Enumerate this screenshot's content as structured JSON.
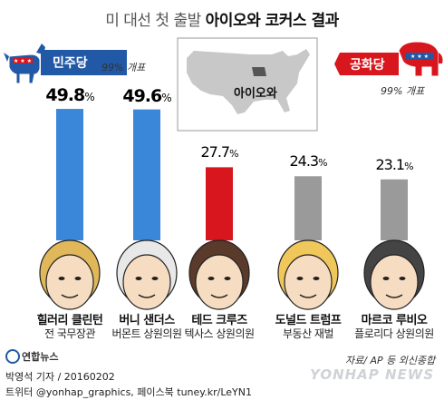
{
  "header": {
    "title_pre": "미 대선 첫 출발",
    "title_emph": "아이오와 코커스 결과"
  },
  "democrat": {
    "party": "민주당",
    "reporting": "99% 개표"
  },
  "republican": {
    "party": "공화당",
    "reporting": "99% 개표"
  },
  "map": {
    "label": "아이오와"
  },
  "chart_data": [
    {
      "type": "bar",
      "categories": [
        "힐러리 클린턴",
        "버니 샌더스"
      ],
      "category_titles": [
        "전 국무장관",
        "버몬트 상원의원"
      ],
      "values": [
        49.8,
        49.6
      ],
      "value_labels": [
        "49.8",
        "49.6"
      ],
      "unit": "%",
      "colors": [
        "#3a86d8",
        "#3a86d8"
      ]
    },
    {
      "type": "bar",
      "categories": [
        "테드 크루즈",
        "도널드 트럼프",
        "마르코 루비오"
      ],
      "category_titles": [
        "텍사스 상원의원",
        "부동산 재벌",
        "플로리다 상원의원"
      ],
      "values": [
        27.7,
        24.3,
        23.1
      ],
      "value_labels": [
        "27.7",
        "24.3",
        "23.1"
      ],
      "unit": "%",
      "colors": [
        "#d8161d",
        "#9a9a9a",
        "#9a9a9a"
      ]
    }
  ],
  "footer": {
    "source": "자료/ AP 등 외신종합",
    "brand": "연합뉴스",
    "byline": "박영석 기자 / 20160202",
    "social": "트위터 @yonhap_graphics, 페이스북 tuney.kr/LeYN1",
    "watermark": "YONHAP NEWS"
  },
  "colors": {
    "dem_blue": "#2159a6",
    "gop_red": "#d8161d",
    "bar_blue": "#3a86d8",
    "bar_gray": "#9a9a9a"
  }
}
